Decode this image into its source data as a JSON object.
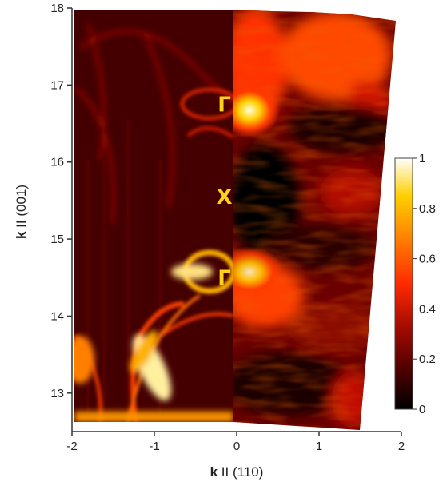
{
  "chart_data": {
    "type": "heatmap",
    "xlabel": {
      "bold": "k",
      "rest": " II (110)"
    },
    "ylabel": {
      "bold": "k",
      "rest": " II (001)"
    },
    "xlim": [
      -2,
      2
    ],
    "ylim": [
      12.5,
      18
    ],
    "x_ticks": [
      -2,
      -1,
      0,
      1,
      2
    ],
    "x_tick_labels": [
      "-2",
      "-1",
      "0",
      "1",
      "2"
    ],
    "y_ticks": [
      13,
      14,
      15,
      16,
      17,
      18
    ],
    "y_tick_labels": [
      "13",
      "14",
      "15",
      "16",
      "17",
      "18"
    ],
    "colorbar": {
      "ticks": [
        0,
        0.2,
        0.4,
        0.6,
        0.8,
        1
      ],
      "tick_labels": [
        "0",
        "0.2",
        "0.4",
        "0.6",
        "0.8",
        "1"
      ],
      "colors": [
        "#000000",
        "#5a0000",
        "#b01000",
        "#ff3300",
        "#ff8a00",
        "#ffd400",
        "#ffffff"
      ]
    },
    "annotations": [
      {
        "text": "Γ",
        "x": -0.15,
        "y": 16.75,
        "color": "#ffd21a"
      },
      {
        "text": "X",
        "x": -0.15,
        "y": 15.55,
        "color": "#ffd21a"
      },
      {
        "text": "Γ",
        "x": -0.15,
        "y": 14.5,
        "color": "#ffd21a"
      }
    ],
    "panels": [
      {
        "side": "calculation",
        "x_range": [
          -2,
          0
        ]
      },
      {
        "side": "measurement",
        "x_range": [
          0,
          1.95
        ]
      }
    ]
  }
}
